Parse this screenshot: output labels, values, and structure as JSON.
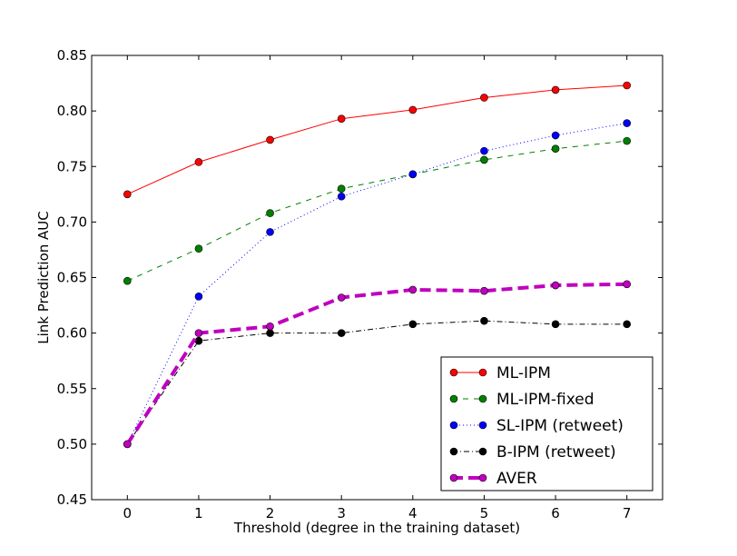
{
  "chart_data": {
    "type": "line",
    "title": "",
    "xlabel": "Threshold (degree in the training dataset)",
    "ylabel": "Link Prediction AUC",
    "xlim": [
      -0.5,
      7.5
    ],
    "ylim": [
      0.45,
      0.85
    ],
    "x": [
      0,
      1,
      2,
      3,
      4,
      5,
      6,
      7
    ],
    "xticks": [
      "0",
      "1",
      "2",
      "3",
      "4",
      "5",
      "6",
      "7"
    ],
    "yticks": [
      "0.45",
      "0.50",
      "0.55",
      "0.60",
      "0.65",
      "0.70",
      "0.75",
      "0.80",
      "0.85"
    ],
    "grid": false,
    "legend_position": "lower-right",
    "series": [
      {
        "name": "ML-IPM",
        "color": "#ff0000",
        "line_style": "solid",
        "values": [
          0.725,
          0.754,
          0.774,
          0.793,
          0.801,
          0.812,
          0.819,
          0.823
        ]
      },
      {
        "name": "ML-IPM-fixed",
        "color": "#008000",
        "line_style": "dashed",
        "values": [
          0.647,
          0.676,
          0.708,
          0.73,
          0.743,
          0.756,
          0.766,
          0.773
        ]
      },
      {
        "name": "SL-IPM (retweet)",
        "color": "#0000ff",
        "line_style": "dotted",
        "values": [
          0.5,
          0.633,
          0.691,
          0.723,
          0.743,
          0.764,
          0.778,
          0.789
        ]
      },
      {
        "name": "B-IPM (retweet)",
        "color": "#000000",
        "line_style": "dashdot",
        "values": [
          0.5,
          0.593,
          0.6,
          0.6,
          0.608,
          0.611,
          0.608,
          0.608
        ]
      },
      {
        "name": "AVER",
        "color": "#bf00bf",
        "line_style": "thick-dashed",
        "values": [
          0.5,
          0.6,
          0.606,
          0.632,
          0.639,
          0.638,
          0.643,
          0.644
        ]
      }
    ]
  }
}
